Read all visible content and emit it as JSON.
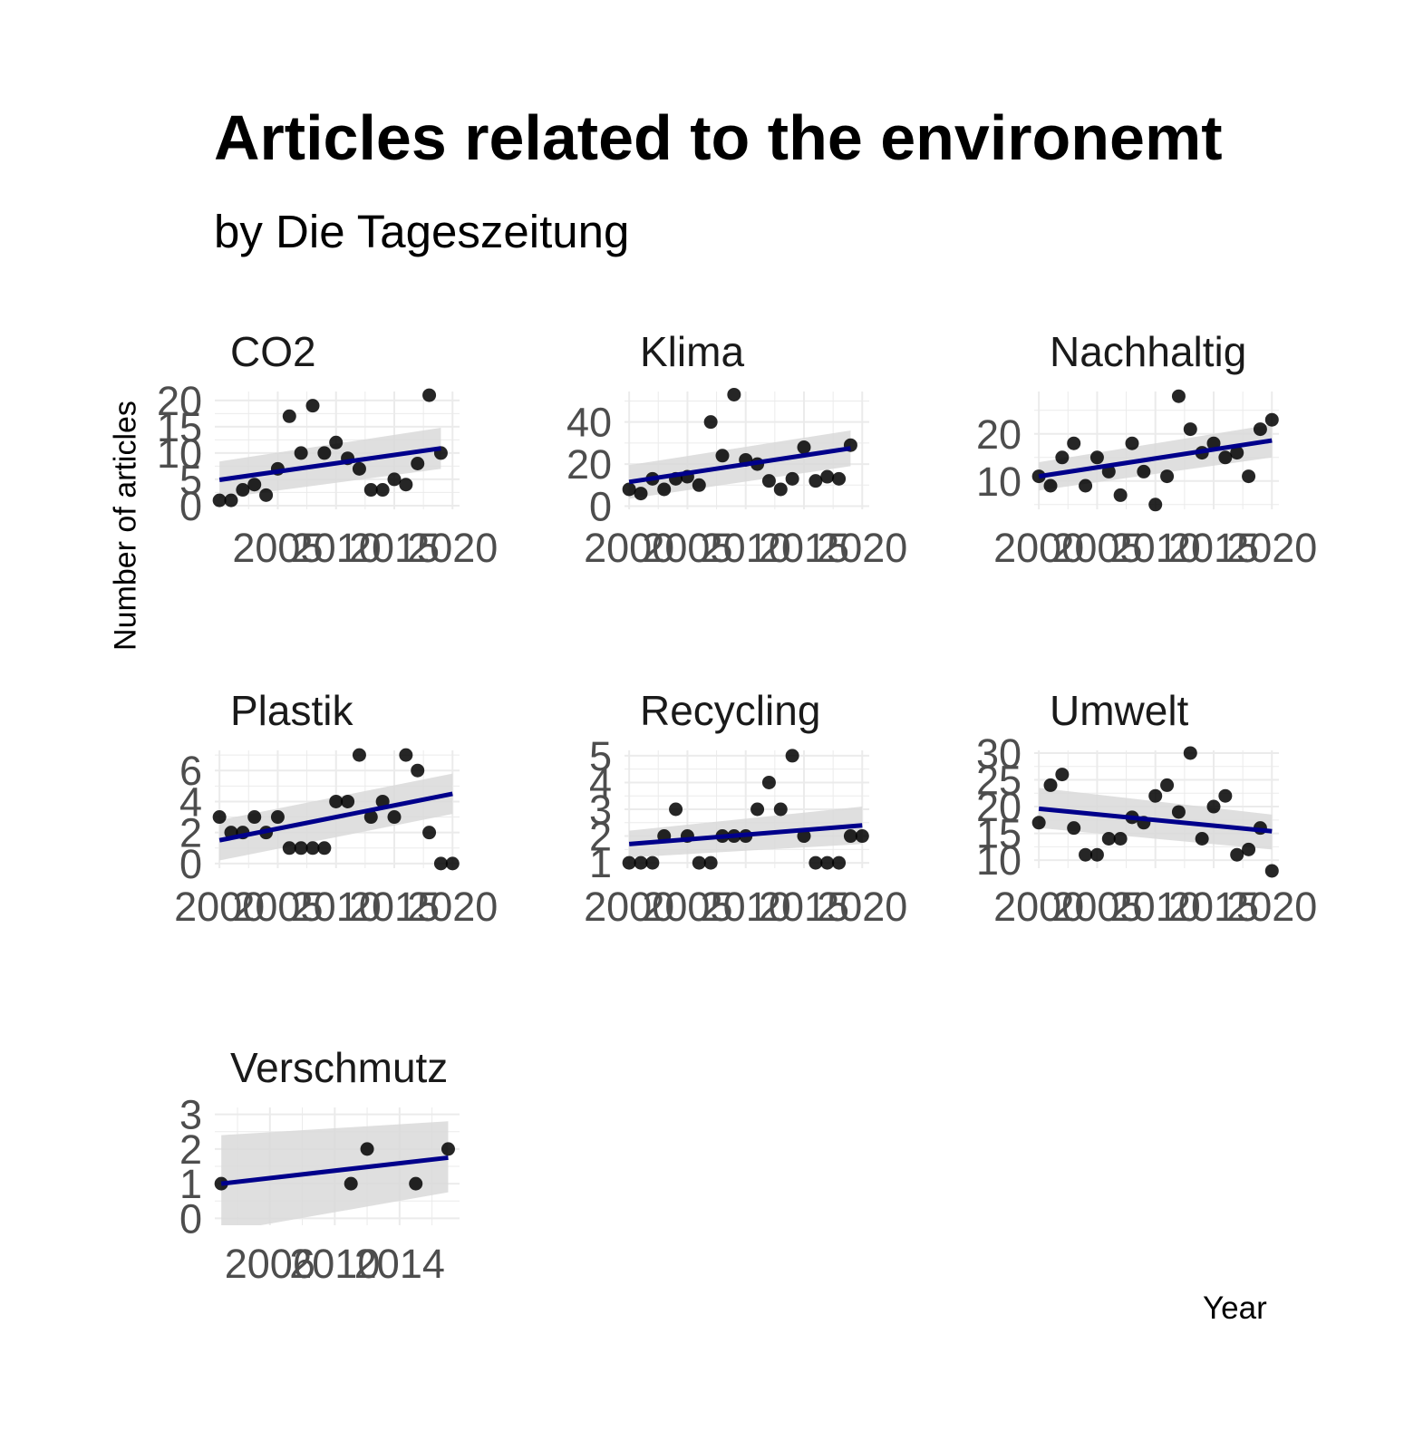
{
  "chart_data": {
    "type": "scatter",
    "title": "Articles related to the environemt",
    "subtitle": "by Die Tageszeitung",
    "xlabel": "Year",
    "ylabel": "Number of articles",
    "grid": true,
    "trend": "linear fit with confidence band",
    "colors": {
      "points": "#000000",
      "trend_line": "#00008b",
      "band": "#d9d9d9",
      "grid": "#ebebeb"
    },
    "panels": [
      {
        "name": "CO2",
        "x": [
          2000,
          2001,
          2002,
          2003,
          2004,
          2005,
          2006,
          2007,
          2008,
          2009,
          2010,
          2011,
          2012,
          2013,
          2014,
          2015,
          2016,
          2017,
          2018,
          2019
        ],
        "y": [
          1,
          1,
          3,
          4,
          2,
          7,
          17,
          10,
          19,
          10,
          12,
          9,
          7,
          3,
          3,
          5,
          4,
          8,
          21,
          10
        ],
        "xlim": [
          1999.6,
          2020.6
        ],
        "ylim": [
          -0.7,
          21.7
        ],
        "xticks": [
          2005,
          2010,
          2015,
          2020
        ],
        "xtick_labels": [
          "2005",
          "2010",
          "2015",
          "2020"
        ],
        "yticks": [
          0,
          5,
          10,
          15,
          20
        ],
        "ytick_labels": [
          "0",
          "5",
          "10",
          "15",
          "20"
        ],
        "fit": [
          4.9,
          10.9
        ],
        "band_lo": [
          1.4,
          7.0
        ],
        "band_hi": [
          8.4,
          14.8
        ]
      },
      {
        "name": "Klima",
        "x": [
          2000,
          2001,
          2002,
          2003,
          2004,
          2005,
          2006,
          2007,
          2008,
          2009,
          2010,
          2011,
          2012,
          2013,
          2014,
          2015,
          2016,
          2017,
          2018,
          2019
        ],
        "y": [
          8,
          6,
          13,
          8,
          13,
          14,
          10,
          40,
          24,
          53,
          22,
          20,
          12,
          8,
          13,
          28,
          12,
          14,
          13,
          29
        ],
        "xlim": [
          1999.6,
          2020.6
        ],
        "ylim": [
          -1.5,
          54.5
        ],
        "xticks": [
          2000,
          2005,
          2010,
          2015,
          2020
        ],
        "xtick_labels": [
          "2000",
          "2005",
          "2010",
          "2015",
          "2020"
        ],
        "yticks": [
          0,
          20,
          40
        ],
        "ytick_labels": [
          "0",
          "20",
          "40"
        ],
        "fit": [
          11.5,
          27.5
        ],
        "band_lo": [
          3.5,
          19.0
        ],
        "band_hi": [
          19.5,
          36.0
        ]
      },
      {
        "name": "Nachhaltig",
        "x": [
          2000,
          2001,
          2002,
          2003,
          2004,
          2005,
          2006,
          2007,
          2008,
          2009,
          2010,
          2011,
          2012,
          2013,
          2014,
          2015,
          2016,
          2017,
          2018,
          2019,
          2020
        ],
        "y": [
          11,
          9,
          15,
          18,
          9,
          15,
          12,
          7,
          18,
          12,
          5,
          11,
          28,
          21,
          16,
          18,
          15,
          16,
          11,
          21,
          23
        ],
        "xlim": [
          1999.6,
          2020.6
        ],
        "ylim": [
          4.0,
          29.0
        ],
        "xticks": [
          2000,
          2005,
          2010,
          2015,
          2020
        ],
        "xtick_labels": [
          "2000",
          "2005",
          "2010",
          "2015",
          "2020"
        ],
        "yticks": [
          10,
          20
        ],
        "ytick_labels": [
          "10",
          "20"
        ],
        "fit": [
          11.0,
          18.6
        ],
        "band_lo": [
          8.0,
          15.0
        ],
        "band_hi": [
          14.0,
          22.0
        ]
      },
      {
        "name": "Plastik",
        "x": [
          2000,
          2001,
          2002,
          2003,
          2004,
          2005,
          2006,
          2007,
          2008,
          2009,
          2010,
          2011,
          2012,
          2013,
          2014,
          2015,
          2016,
          2017,
          2018,
          2019,
          2020
        ],
        "y": [
          3,
          2,
          2,
          3,
          2,
          3,
          1,
          1,
          1,
          1,
          4,
          4,
          7,
          3,
          4,
          3,
          7,
          6,
          2,
          0,
          0
        ],
        "xlim": [
          1999.6,
          2020.6
        ],
        "ylim": [
          -0.3,
          7.3
        ],
        "xticks": [
          2000,
          2005,
          2010,
          2015,
          2020
        ],
        "xtick_labels": [
          "2000",
          "2005",
          "2010",
          "2015",
          "2020"
        ],
        "yticks": [
          0,
          2,
          4,
          6
        ],
        "ytick_labels": [
          "0",
          "2",
          "4",
          "6"
        ],
        "fit": [
          1.5,
          4.5
        ],
        "band_lo": [
          0.2,
          3.2
        ],
        "band_hi": [
          2.8,
          5.8
        ]
      },
      {
        "name": "Recycling",
        "x": [
          2000,
          2001,
          2002,
          2003,
          2004,
          2005,
          2006,
          2007,
          2008,
          2009,
          2010,
          2011,
          2012,
          2013,
          2014,
          2015,
          2016,
          2017,
          2018,
          2019,
          2020
        ],
        "y": [
          1,
          1,
          1,
          2,
          3,
          2,
          1,
          1,
          2,
          2,
          2,
          3,
          4,
          3,
          5,
          2,
          1,
          1,
          1,
          2,
          2
        ],
        "xlim": [
          1999.6,
          2020.6
        ],
        "ylim": [
          0.8,
          5.2
        ],
        "xticks": [
          2000,
          2005,
          2010,
          2015,
          2020
        ],
        "xtick_labels": [
          "2000",
          "2005",
          "2010",
          "2015",
          "2020"
        ],
        "yticks": [
          1,
          2,
          3,
          4,
          5
        ],
        "ytick_labels": [
          "1",
          "2",
          "3",
          "4",
          "5"
        ],
        "fit": [
          1.7,
          2.4
        ],
        "band_lo": [
          1.2,
          1.7
        ],
        "band_hi": [
          2.2,
          3.1
        ]
      },
      {
        "name": "Umwelt",
        "x": [
          2000,
          2001,
          2002,
          2003,
          2004,
          2005,
          2006,
          2007,
          2008,
          2009,
          2010,
          2011,
          2012,
          2013,
          2014,
          2015,
          2016,
          2017,
          2018,
          2019,
          2020
        ],
        "y": [
          17,
          24,
          26,
          16,
          11,
          11,
          14,
          14,
          18,
          17,
          22,
          24,
          19,
          30,
          14,
          20,
          22,
          11,
          12,
          16,
          8
        ],
        "xlim": [
          1999.6,
          2020.6
        ],
        "ylim": [
          8.5,
          30.5
        ],
        "xticks": [
          2000,
          2005,
          2010,
          2015,
          2020
        ],
        "xtick_labels": [
          "2000",
          "2005",
          "2010",
          "2015",
          "2020"
        ],
        "yticks": [
          10,
          15,
          20,
          25,
          30
        ],
        "ytick_labels": [
          "10",
          "15",
          "20",
          "25",
          "30"
        ],
        "fit": [
          19.6,
          15.4
        ],
        "band_lo": [
          16.0,
          12.0
        ],
        "band_hi": [
          23.5,
          18.5
        ]
      },
      {
        "name": "Verschmutz",
        "x": [
          2003,
          2011,
          2012,
          2015,
          2017
        ],
        "y": [
          1,
          1,
          2,
          1,
          2
        ],
        "xlim": [
          2002.6,
          2017.7
        ],
        "ylim": [
          -0.2,
          3.2
        ],
        "xticks": [
          2006,
          2010,
          2014
        ],
        "xtick_labels": [
          "2006",
          "2010",
          "2014"
        ],
        "yticks": [
          0,
          1,
          2,
          3
        ],
        "ytick_labels": [
          "0",
          "1",
          "2",
          "3"
        ],
        "fit": [
          1.0,
          1.75
        ],
        "band_lo": [
          -0.4,
          0.75
        ],
        "band_hi": [
          2.4,
          2.8
        ]
      }
    ]
  }
}
